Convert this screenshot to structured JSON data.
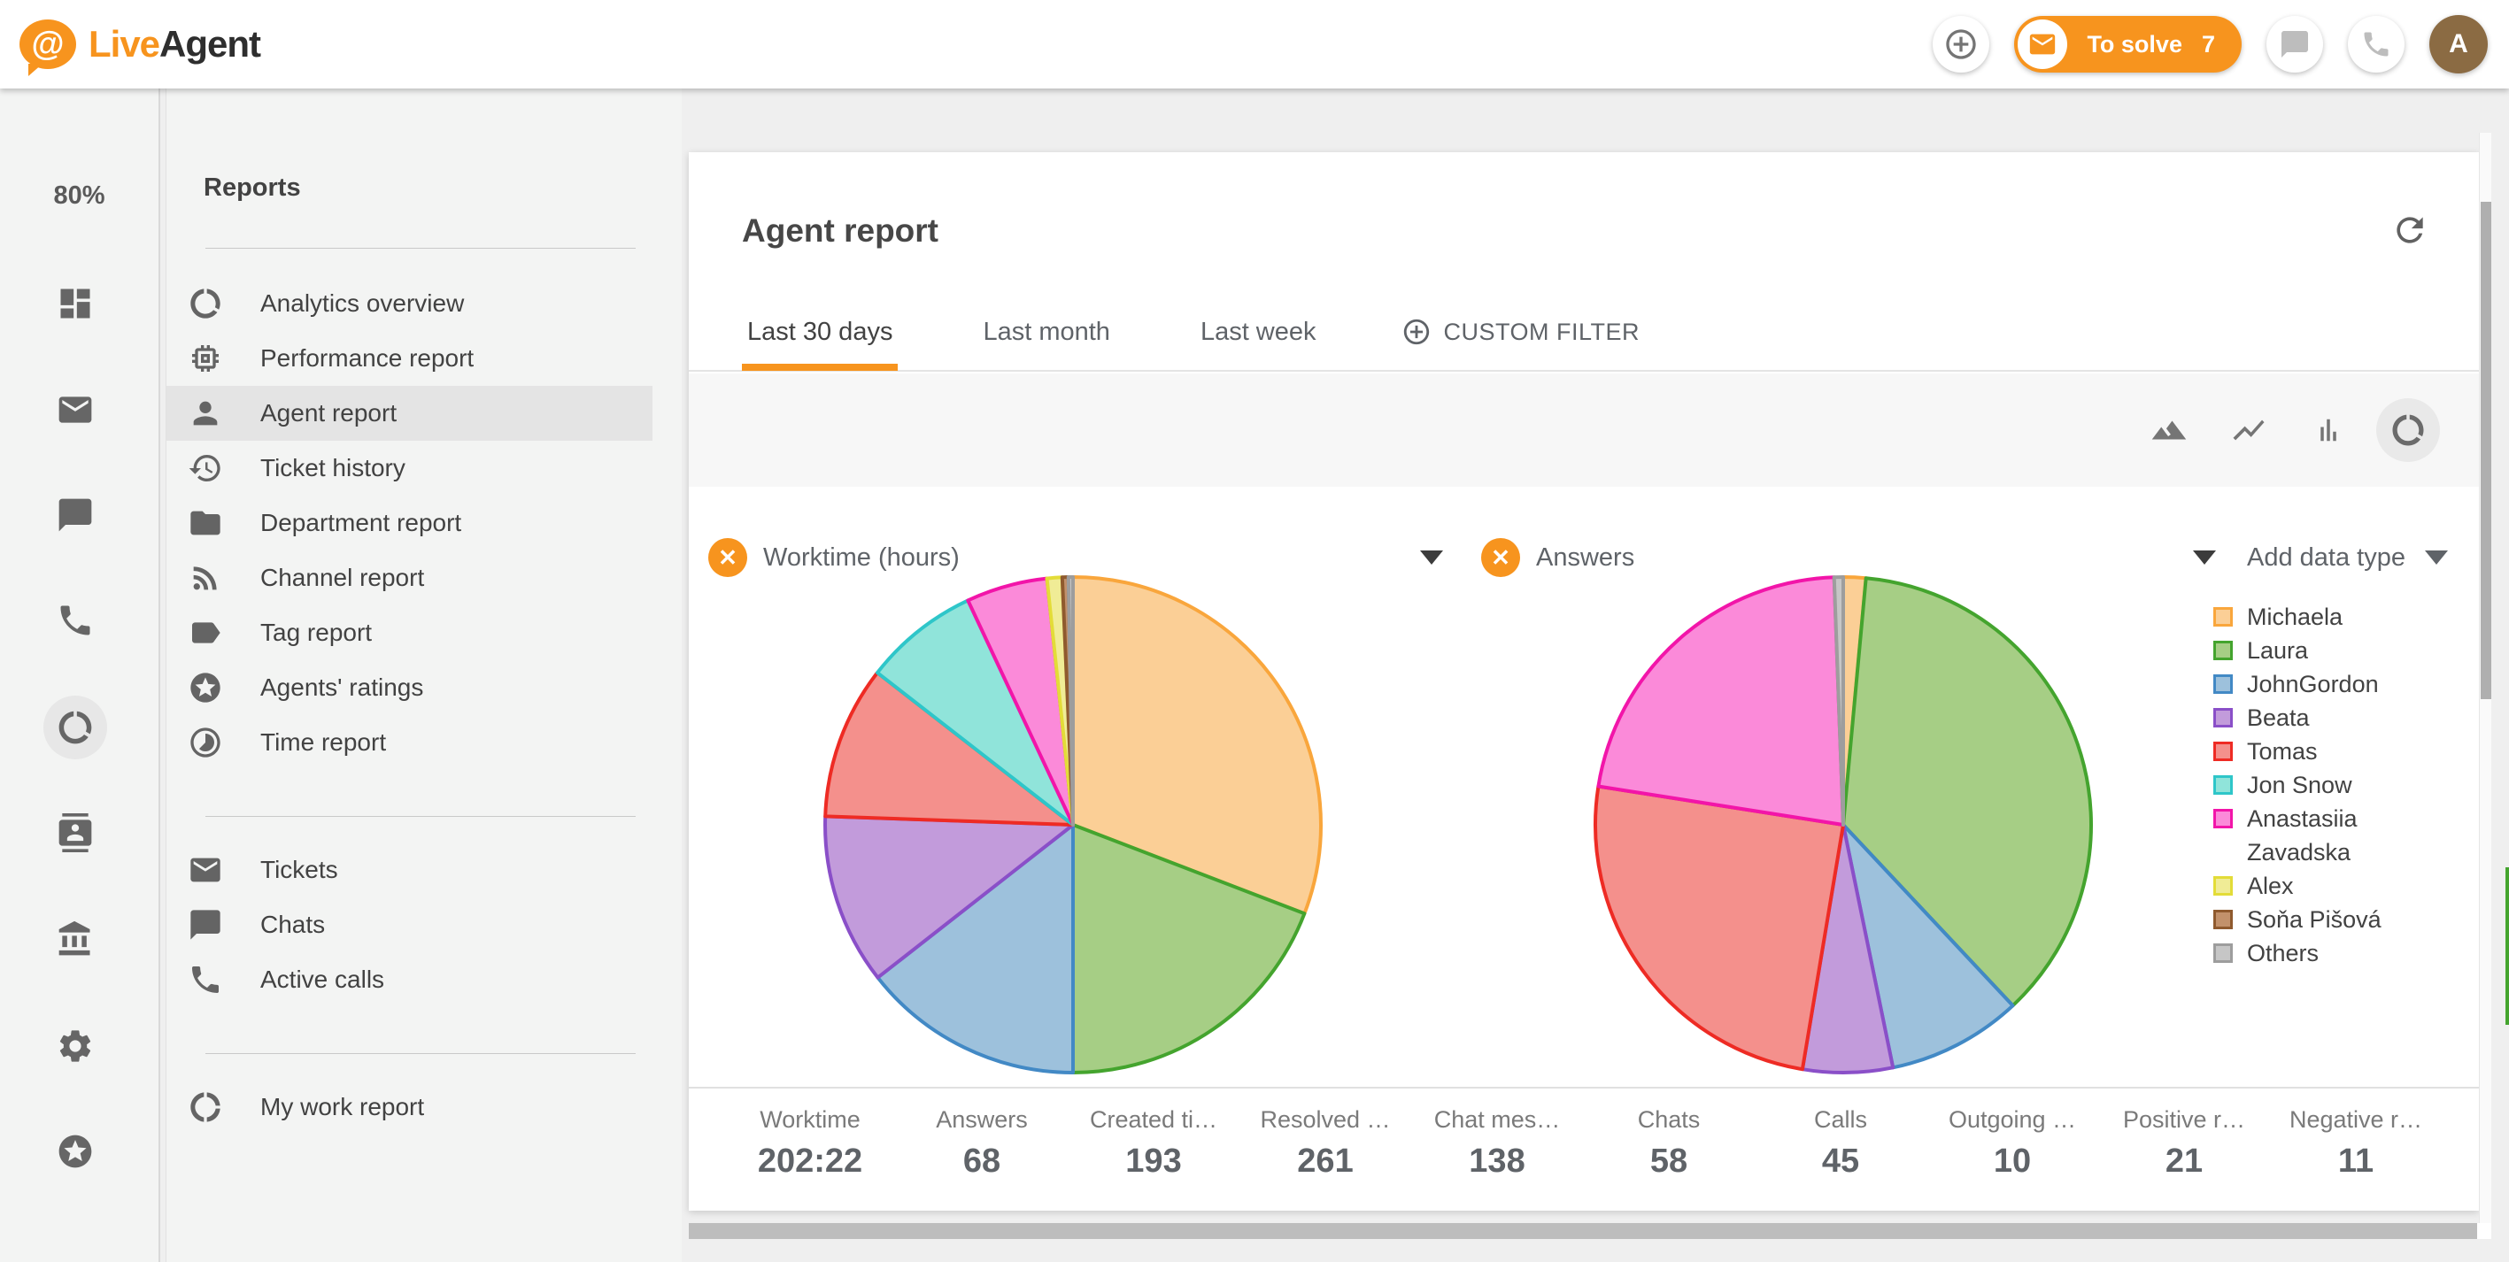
{
  "brand": {
    "live": "Live",
    "agent": "Agent"
  },
  "theme": {
    "accent": "#F7941E",
    "avatar_bg": "#8B6B43"
  },
  "header": {
    "to_solve_label": "To solve",
    "to_solve_count": "7",
    "avatar_initial": "A"
  },
  "rail": {
    "usage_percent": "80%"
  },
  "reports_menu": {
    "title": "Reports",
    "items": [
      "Analytics overview",
      "Performance report",
      "Agent report",
      "Ticket history",
      "Department report",
      "Channel report",
      "Tag report",
      "Agents' ratings",
      "Time report"
    ],
    "shortcuts": [
      "Tickets",
      "Chats",
      "Active calls"
    ],
    "my_work": "My work report"
  },
  "main": {
    "title": "Agent report",
    "tabs": [
      {
        "label": "Last 30 days",
        "active": true
      },
      {
        "label": "Last month",
        "active": false
      },
      {
        "label": "Last week",
        "active": false
      }
    ],
    "custom_filter": "CUSTOM FILTER",
    "add_data_type": "Add data type"
  },
  "chart_data": [
    {
      "type": "pie",
      "title": "Worktime (hours)",
      "total_label": "202:22",
      "legend_position": "right",
      "series": [
        {
          "name": "Michaela",
          "value": 62.4,
          "fill": "#FBCF96",
          "stroke": "#F9A63C"
        },
        {
          "name": "Laura",
          "value": 38.8,
          "fill": "#A6CE85",
          "stroke": "#44A42E"
        },
        {
          "name": "JohnGordon",
          "value": 29.2,
          "fill": "#9DC1DC",
          "stroke": "#4289C5"
        },
        {
          "name": "Beata",
          "value": 22.5,
          "fill": "#C29BDB",
          "stroke": "#8A4FC8"
        },
        {
          "name": "Tomas",
          "value": 20.2,
          "fill": "#F4908C",
          "stroke": "#EE2B24"
        },
        {
          "name": "Jon Snow",
          "value": 15.2,
          "fill": "#90E4DA",
          "stroke": "#2EC6C9"
        },
        {
          "name": "Anastasiia Zavadska",
          "value": 10.7,
          "fill": "#FB8AD9",
          "stroke": "#F215A9"
        },
        {
          "name": "Alex",
          "value": 2.0,
          "fill": "#F0EC96",
          "stroke": "#E3DC38"
        },
        {
          "name": "Soňa Pišová",
          "value": 0.8,
          "fill": "#C2916B",
          "stroke": "#8F5A2E"
        },
        {
          "name": "Others",
          "value": 0.6,
          "fill": "#C6C6C6",
          "stroke": "#9D9D9D"
        }
      ]
    },
    {
      "type": "pie",
      "title": "Answers",
      "total_label": "68",
      "legend_position": "right",
      "series": [
        {
          "name": "Michaela",
          "value": 1,
          "fill": "#FBCF96",
          "stroke": "#F9A63C"
        },
        {
          "name": "Laura",
          "value": 25,
          "fill": "#A6CE85",
          "stroke": "#44A42E"
        },
        {
          "name": "JohnGordon",
          "value": 6,
          "fill": "#9DC1DC",
          "stroke": "#4289C5"
        },
        {
          "name": "Beata",
          "value": 4,
          "fill": "#C29BDB",
          "stroke": "#8A4FC8"
        },
        {
          "name": "Tomas",
          "value": 17,
          "fill": "#F4908C",
          "stroke": "#EE2B24"
        },
        {
          "name": "Jon Snow",
          "value": 0,
          "fill": "#90E4DA",
          "stroke": "#2EC6C9"
        },
        {
          "name": "Anastasiia Zavadska",
          "value": 15,
          "fill": "#FB8AD9",
          "stroke": "#F215A9"
        },
        {
          "name": "Alex",
          "value": 0,
          "fill": "#F0EC96",
          "stroke": "#E3DC38"
        },
        {
          "name": "Soňa Pišová",
          "value": 0,
          "fill": "#C2916B",
          "stroke": "#8F5A2E"
        },
        {
          "name": "Others",
          "value": 0.4,
          "fill": "#C6C6C6",
          "stroke": "#9D9D9D"
        }
      ]
    }
  ],
  "stats": [
    {
      "label": "Worktime",
      "value": "202:22"
    },
    {
      "label": "Answers",
      "value": "68"
    },
    {
      "label": "Created ti…",
      "value": "193"
    },
    {
      "label": "Resolved …",
      "value": "261"
    },
    {
      "label": "Chat mes…",
      "value": "138"
    },
    {
      "label": "Chats",
      "value": "58"
    },
    {
      "label": "Calls",
      "value": "45"
    },
    {
      "label": "Outgoing …",
      "value": "10"
    },
    {
      "label": "Positive r…",
      "value": "21"
    },
    {
      "label": "Negative r…",
      "value": "11"
    }
  ]
}
